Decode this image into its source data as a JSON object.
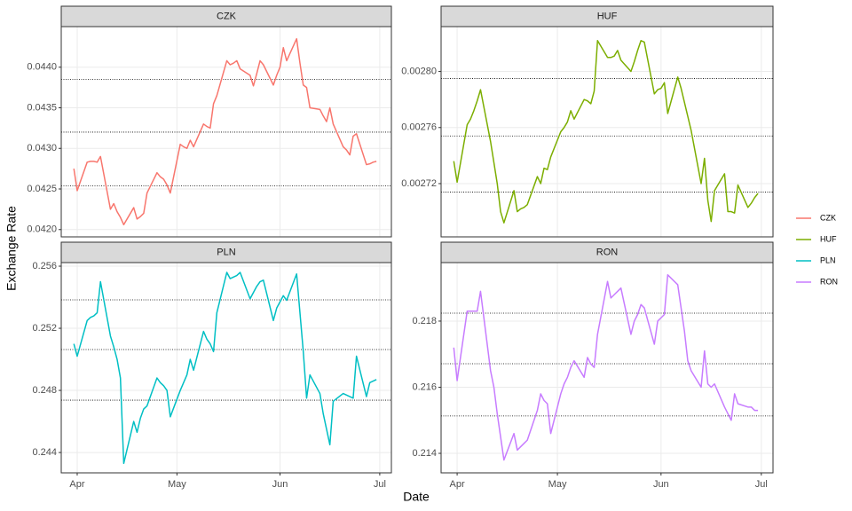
{
  "x_label": "Date",
  "y_label": "Exchange Rate",
  "chart_data": [
    {
      "type": "line",
      "title": "CZK",
      "x": [
        -1,
        0,
        3,
        4,
        5,
        6,
        7,
        10,
        11,
        12,
        13,
        14,
        17,
        18,
        19,
        20,
        21,
        24,
        25,
        26,
        27,
        28,
        31,
        32,
        33,
        34,
        35,
        38,
        39,
        40,
        41,
        42,
        45,
        46,
        47,
        48,
        49,
        52,
        53,
        54,
        55,
        56,
        59,
        60,
        61,
        62,
        63,
        66,
        67,
        68,
        69,
        70,
        73,
        74,
        75,
        76,
        77,
        80,
        81,
        82,
        83,
        84,
        87,
        88,
        89,
        90
      ],
      "series": [
        {
          "name": "CZK",
          "color": "#F8766D",
          "values": [
            0.04275,
            0.04248,
            0.04283,
            0.04284,
            0.04284,
            0.04283,
            0.0429,
            0.04225,
            0.04232,
            0.04222,
            0.04215,
            0.04206,
            0.04227,
            0.04213,
            0.04216,
            0.0422,
            0.04245,
            0.0427,
            0.04265,
            0.04262,
            0.04255,
            0.04245,
            0.04305,
            0.04302,
            0.043,
            0.0431,
            0.04302,
            0.0433,
            0.04327,
            0.04325,
            0.04355,
            0.04365,
            0.04408,
            0.04403,
            0.04405,
            0.04408,
            0.04398,
            0.0439,
            0.04377,
            0.04392,
            0.04408,
            0.04403,
            0.04378,
            0.0439,
            0.044,
            0.04424,
            0.04408,
            0.04435,
            0.04405,
            0.04378,
            0.04375,
            0.0435,
            0.04348,
            0.0434,
            0.04333,
            0.0435,
            0.0433,
            0.04302,
            0.04298,
            0.04292,
            0.04315,
            0.04318,
            0.0428,
            0.04281,
            0.04283,
            0.04284
          ]
        }
      ],
      "xlim": [
        -4.8,
        94.5
      ],
      "xticks": [
        0,
        30,
        61,
        91
      ],
      "ylim": [
        0.04191,
        0.0445
      ],
      "yticks": [
        {
          "value": 0.042,
          "label": "0.0420"
        },
        0.0425,
        {
          "value": 0.043,
          "label": "0.0430"
        },
        0.0435,
        {
          "value": 0.044,
          "label": "0.0440"
        }
      ],
      "hlines": [
        0.04385,
        0.0432,
        0.04254
      ],
      "grid": true
    },
    {
      "type": "line",
      "title": "HUF",
      "x": [
        -1,
        0,
        3,
        4,
        5,
        6,
        7,
        10,
        11,
        12,
        13,
        14,
        17,
        18,
        19,
        20,
        21,
        24,
        25,
        26,
        27,
        28,
        31,
        32,
        33,
        34,
        35,
        38,
        39,
        40,
        41,
        42,
        45,
        46,
        47,
        48,
        49,
        52,
        53,
        54,
        55,
        56,
        59,
        60,
        61,
        62,
        63,
        66,
        67,
        68,
        69,
        70,
        73,
        74,
        75,
        76,
        77,
        80,
        81,
        82,
        83,
        84,
        87,
        88,
        89,
        90
      ],
      "series": [
        {
          "name": "HUF",
          "color": "#7CAE00",
          "values": [
            0.002736,
            0.002721,
            0.002762,
            0.002766,
            0.002772,
            0.002779,
            0.002787,
            0.00275,
            0.002735,
            0.00272,
            0.0027,
            0.002692,
            0.002715,
            0.0027,
            0.002702,
            0.002703,
            0.002705,
            0.002725,
            0.00272,
            0.002731,
            0.00273,
            0.002739,
            0.002757,
            0.00276,
            0.002764,
            0.002772,
            0.002766,
            0.00278,
            0.002779,
            0.002777,
            0.002786,
            0.002822,
            0.00281,
            0.00281,
            0.002811,
            0.002815,
            0.002808,
            0.0028,
            0.002807,
            0.002815,
            0.002822,
            0.002821,
            0.002784,
            0.002787,
            0.002788,
            0.002792,
            0.00277,
            0.002796,
            0.002788,
            0.002778,
            0.002768,
            0.002758,
            0.00272,
            0.002738,
            0.002708,
            0.002693,
            0.002715,
            0.002727,
            0.0027,
            0.0027,
            0.002699,
            0.002719,
            0.002703,
            0.002706,
            0.00271,
            0.002713
          ]
        }
      ],
      "xlim": [
        -4.8,
        94.5
      ],
      "xticks": [
        0,
        30,
        61,
        91
      ],
      "ylim": [
        0.002682,
        0.002832
      ],
      "yticks": [
        0.00272,
        0.00276,
        {
          "value": 0.0028,
          "label": "0.00280"
        }
      ],
      "hlines": [
        0.002795,
        0.002754,
        0.002714
      ],
      "grid": true
    },
    {
      "type": "line",
      "title": "PLN",
      "x": [
        -1,
        0,
        3,
        4,
        5,
        6,
        7,
        10,
        11,
        12,
        13,
        14,
        17,
        18,
        19,
        20,
        21,
        24,
        25,
        26,
        27,
        28,
        31,
        32,
        33,
        34,
        35,
        38,
        39,
        40,
        41,
        42,
        45,
        46,
        47,
        48,
        49,
        52,
        53,
        54,
        55,
        56,
        59,
        60,
        61,
        62,
        63,
        66,
        67,
        68,
        69,
        70,
        73,
        74,
        75,
        76,
        77,
        80,
        81,
        82,
        83,
        84,
        87,
        88,
        89,
        90
      ],
      "series": [
        {
          "name": "PLN",
          "color": "#00BFC4",
          "values": [
            0.251,
            0.2502,
            0.2525,
            0.2527,
            0.2528,
            0.253,
            0.255,
            0.2515,
            0.2508,
            0.25,
            0.2488,
            0.2433,
            0.246,
            0.2453,
            0.2462,
            0.2468,
            0.247,
            0.2488,
            0.2485,
            0.2483,
            0.248,
            0.2463,
            0.248,
            0.2485,
            0.249,
            0.25,
            0.2493,
            0.2518,
            0.2513,
            0.251,
            0.2505,
            0.253,
            0.2556,
            0.2552,
            0.2553,
            0.2554,
            0.2556,
            0.2539,
            0.2543,
            0.2547,
            0.255,
            0.2551,
            0.2525,
            0.2533,
            0.2537,
            0.2541,
            0.2538,
            0.2555,
            0.253,
            0.2505,
            0.2475,
            0.249,
            0.2478,
            0.2465,
            0.2455,
            0.2445,
            0.2473,
            0.2478,
            0.2477,
            0.2476,
            0.2475,
            0.2502,
            0.2476,
            0.2485,
            0.2486,
            0.2487
          ]
        }
      ],
      "xlim": [
        -4.8,
        94.5
      ],
      "xticks": [
        {
          "value": 0,
          "label": "Apr"
        },
        {
          "value": 30,
          "label": "May"
        },
        {
          "value": 61,
          "label": "Jun"
        },
        {
          "value": 91,
          "label": "Jul"
        }
      ],
      "ylim": [
        0.24269,
        0.25623
      ],
      "yticks": [
        0.244,
        0.248,
        0.252,
        0.256
      ],
      "hlines": [
        0.25383,
        0.25063,
        0.24737
      ],
      "grid": true
    },
    {
      "type": "line",
      "title": "RON",
      "x": [
        -1,
        0,
        3,
        4,
        5,
        6,
        7,
        10,
        11,
        12,
        13,
        14,
        17,
        18,
        19,
        20,
        21,
        24,
        25,
        26,
        27,
        28,
        31,
        32,
        33,
        34,
        35,
        38,
        39,
        40,
        41,
        42,
        45,
        46,
        47,
        48,
        49,
        52,
        53,
        54,
        55,
        56,
        59,
        60,
        61,
        62,
        63,
        66,
        67,
        68,
        69,
        70,
        73,
        74,
        75,
        76,
        77,
        80,
        81,
        82,
        83,
        84,
        87,
        88,
        89,
        90
      ],
      "series": [
        {
          "name": "RON",
          "color": "#C77CFF",
          "values": [
            0.2172,
            0.2162,
            0.2183,
            0.2183,
            0.2183,
            0.2183,
            0.2189,
            0.2165,
            0.216,
            0.2152,
            0.2145,
            0.2138,
            0.2146,
            0.2141,
            0.2142,
            0.2143,
            0.2144,
            0.2153,
            0.2158,
            0.2156,
            0.2155,
            0.2146,
            0.2158,
            0.2161,
            0.2163,
            0.2166,
            0.2168,
            0.2163,
            0.2169,
            0.2167,
            0.2166,
            0.2176,
            0.2192,
            0.2187,
            0.2188,
            0.2189,
            0.219,
            0.2176,
            0.218,
            0.2182,
            0.2185,
            0.2184,
            0.2173,
            0.218,
            0.2181,
            0.2182,
            0.2194,
            0.2191,
            0.2184,
            0.2177,
            0.2168,
            0.2165,
            0.216,
            0.2171,
            0.2161,
            0.216,
            0.2161,
            0.2154,
            0.2152,
            0.215,
            0.2158,
            0.2155,
            0.2154,
            0.2154,
            0.2153,
            0.2153
          ]
        }
      ],
      "xlim": [
        -4.8,
        94.5
      ],
      "xticks": [
        {
          "value": 0,
          "label": "Apr"
        },
        {
          "value": 30,
          "label": "May"
        },
        {
          "value": 61,
          "label": "Jun"
        },
        {
          "value": 91,
          "label": "Jul"
        }
      ],
      "ylim": [
        0.21341,
        0.21977
      ],
      "yticks": [
        0.214,
        0.216,
        0.218
      ],
      "hlines": [
        0.21824,
        0.21671,
        0.21513
      ],
      "grid": true
    }
  ]
}
